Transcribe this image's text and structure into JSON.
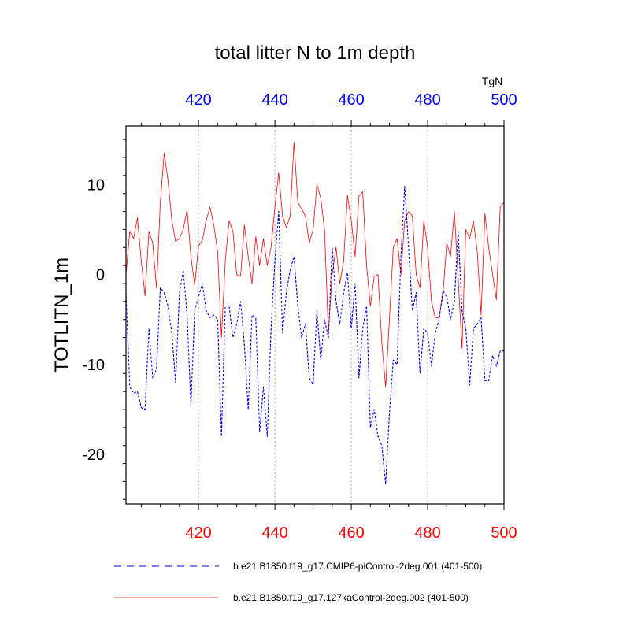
{
  "chart_data": {
    "type": "line",
    "title": "total litter N to 1m depth",
    "ylabel": "TOTLITN_1m",
    "units_label": "TgN",
    "xlim": [
      401,
      500
    ],
    "ylim": [
      -25.5,
      16.5
    ],
    "x_ticks": [
      420,
      440,
      460,
      480,
      500
    ],
    "x_tick_labels": [
      "420",
      "440",
      "460",
      "480",
      "500"
    ],
    "y_ticks": [
      -20,
      -10,
      0,
      10
    ],
    "y_tick_labels": [
      "-20",
      "-10",
      "0",
      "10"
    ],
    "grid": "vertical dotted lines at major x ticks",
    "colors": {
      "bottom_axis_labels": "#ff0000",
      "top_axis_labels": "#0000ff"
    },
    "legend_position": "bottom",
    "x": [
      401,
      402,
      403,
      404,
      405,
      406,
      407,
      408,
      409,
      410,
      411,
      412,
      413,
      414,
      415,
      416,
      417,
      418,
      419,
      420,
      421,
      422,
      423,
      424,
      425,
      426,
      427,
      428,
      429,
      430,
      431,
      432,
      433,
      434,
      435,
      436,
      437,
      438,
      439,
      440,
      441,
      442,
      443,
      444,
      445,
      446,
      447,
      448,
      449,
      450,
      451,
      452,
      453,
      454,
      455,
      456,
      457,
      458,
      459,
      460,
      461,
      462,
      463,
      464,
      465,
      466,
      467,
      468,
      469,
      470,
      471,
      472,
      473,
      474,
      475,
      476,
      477,
      478,
      479,
      480,
      481,
      482,
      483,
      484,
      485,
      486,
      487,
      488,
      489,
      490,
      491,
      492,
      493,
      494,
      495,
      496,
      497,
      498,
      499,
      500
    ],
    "series": [
      {
        "name": "b.e21.B1850.f19_g17.CMIP6-piControl-2deg.001 (401-500)",
        "color": "#0000ff",
        "dash": "dashed",
        "values": [
          -2,
          -12.5,
          -13.2,
          -13,
          -14.8,
          -15,
          -6,
          -11.5,
          -10.5,
          -1.5,
          -2,
          -3.5,
          -6.5,
          -12,
          -2,
          0.5,
          -4.5,
          -14.5,
          -4,
          -2.5,
          -1,
          -4,
          -4.8,
          -4.5,
          -5,
          -18,
          -3.5,
          -3.5,
          -7,
          -5.5,
          -3,
          -7.8,
          -15,
          -4.5,
          -4.8,
          -17.5,
          -12.5,
          -18,
          -6,
          1.5,
          7,
          -6.5,
          -2,
          0.5,
          2,
          -3.5,
          -7,
          -5.5,
          -11.5,
          -12.2,
          -4,
          -9.5,
          -5,
          -7,
          3,
          -3,
          -5.5,
          -2,
          0.2,
          -6,
          -1,
          -11.5,
          -6,
          -3.5,
          -17,
          -15,
          -18,
          -19,
          -23.3,
          -15.5,
          -9.5,
          -10,
          2,
          9.8,
          3,
          -4,
          -2,
          -11,
          -6,
          -6.5,
          -10.2,
          -6.5,
          -5,
          -1.8,
          -2.5,
          -5,
          -3,
          4.8,
          -4,
          -6,
          -12.3,
          -6,
          -5.5,
          -4.8,
          -11.8,
          -11.8,
          -9,
          -10.2,
          -8.5,
          -8.5
        ]
      },
      {
        "name": "b.e21.B1850.f19_g17.127kaControl-2deg.002 (401-500)",
        "color": "#ff0000",
        "dash": "solid",
        "values": [
          0,
          4.8,
          4,
          6.3,
          1.5,
          -2.4,
          4.8,
          3.5,
          -1.5,
          8,
          13.5,
          10.5,
          6,
          3.7,
          4,
          5,
          7.2,
          2,
          -1.2,
          3.2,
          3.8,
          6,
          7.5,
          5.5,
          2.5,
          -7,
          1.5,
          6,
          4.8,
          0,
          -0.2,
          5.5,
          2,
          -1,
          4.2,
          1,
          4,
          1,
          3,
          7.5,
          11.3,
          6.5,
          5.2,
          6.5,
          14.7,
          8,
          7.3,
          6.5,
          3.5,
          5,
          10,
          8.5,
          5,
          -6.5,
          0,
          3,
          -1,
          1.5,
          8.8,
          6,
          2,
          8.7,
          9.2,
          1,
          -3.5,
          -0.2,
          0,
          -7.5,
          -12.5,
          -5,
          3,
          4,
          0,
          6,
          7,
          6.5,
          0,
          -1.5,
          6,
          3,
          -3,
          -4.8,
          -4.8,
          -2.3,
          3.5,
          2,
          7,
          -0.5,
          -8.2,
          5,
          4,
          6,
          2.5,
          -4.5,
          6.8,
          3,
          0,
          -2.8,
          7.5,
          8
        ]
      }
    ]
  }
}
